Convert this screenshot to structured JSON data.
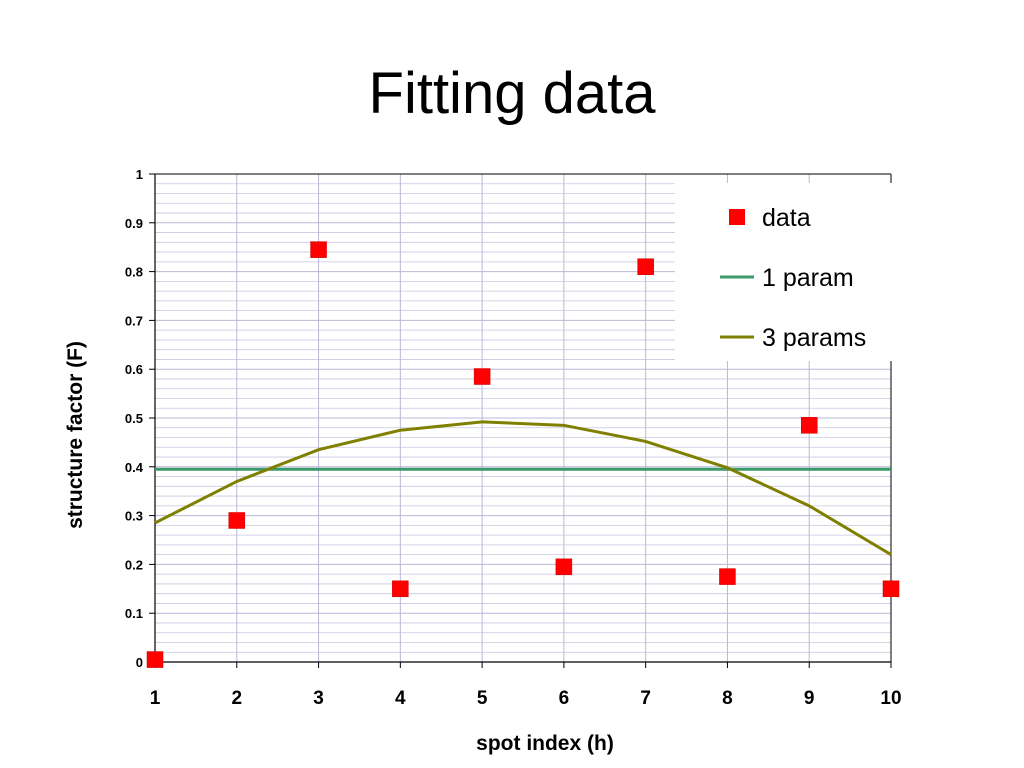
{
  "slide": {
    "title": "Fitting data"
  },
  "chart_data": {
    "type": "scatter",
    "title": "",
    "xlabel": "spot index (h)",
    "ylabel": "structure factor (F)",
    "xlim": [
      1,
      10
    ],
    "ylim": [
      0,
      1
    ],
    "x_ticks": [
      "1",
      "2",
      "3",
      "4",
      "5",
      "6",
      "7",
      "8",
      "9",
      "10"
    ],
    "y_ticks": [
      "0",
      "0.1",
      "0.2",
      "0.3",
      "0.4",
      "0.5",
      "0.6",
      "0.7",
      "0.8",
      "0.9",
      "1"
    ],
    "grid": true,
    "legend_position": "top-right",
    "series": [
      {
        "name": "data",
        "kind": "markers",
        "marker": "square",
        "color": "#ff0000",
        "x": [
          1,
          2,
          3,
          4,
          5,
          6,
          7,
          8,
          9,
          10
        ],
        "y": [
          0.005,
          0.29,
          0.845,
          0.15,
          0.585,
          0.195,
          0.81,
          0.175,
          0.485,
          0.15
        ]
      },
      {
        "name": "1 param",
        "kind": "line",
        "color": "#3a9a6a",
        "x": [
          1,
          10
        ],
        "y": [
          0.395,
          0.395
        ]
      },
      {
        "name": "3 params",
        "kind": "line",
        "color": "#808000",
        "x": [
          1,
          2,
          3,
          4,
          5,
          6,
          7,
          8,
          9,
          10
        ],
        "y": [
          0.285,
          0.37,
          0.435,
          0.475,
          0.492,
          0.485,
          0.452,
          0.398,
          0.32,
          0.22
        ]
      }
    ]
  }
}
